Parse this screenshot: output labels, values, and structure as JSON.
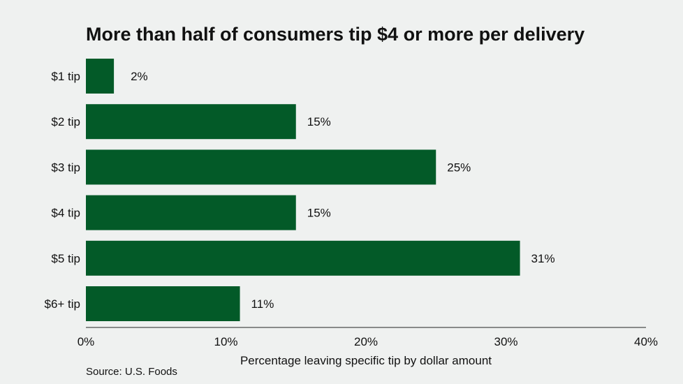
{
  "chart_data": {
    "type": "bar",
    "orientation": "horizontal",
    "title": "More than half of consumers tip $4 or more per delivery",
    "categories": [
      "$1 tip",
      "$2 tip",
      "$3 tip",
      "$4 tip",
      "$5 tip",
      "$6+ tip"
    ],
    "values": [
      2,
      15,
      25,
      15,
      31,
      11
    ],
    "value_labels": [
      "2%",
      "15%",
      "25%",
      "15%",
      "31%",
      "11%"
    ],
    "xlim": [
      0,
      40
    ],
    "xticks": [
      0,
      10,
      20,
      30,
      40
    ],
    "xtick_labels": [
      "0%",
      "10%",
      "20%",
      "30%",
      "40%"
    ],
    "xlabel": "Percentage leaving specific tip by dollar amount",
    "ylabel": "",
    "grid": false,
    "bar_color": "#035a28",
    "source": "Source: U.S. Foods"
  }
}
